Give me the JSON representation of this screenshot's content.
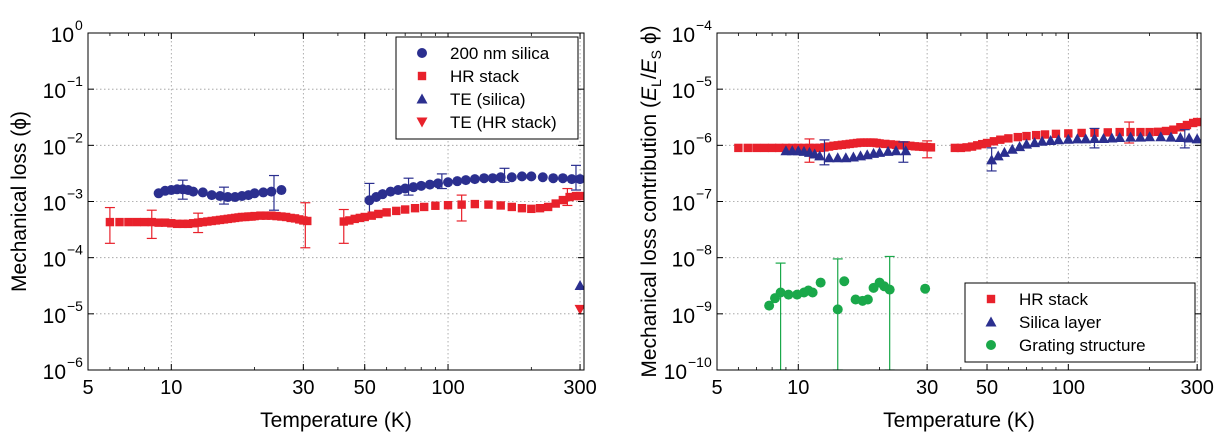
{
  "chart_data": [
    {
      "type": "scatter",
      "title": "",
      "xlabel": "Temperature (K)",
      "ylabel": "Mechanical loss (ϕ)",
      "x_scale": "log",
      "y_scale": "log",
      "xlim": [
        5,
        310
      ],
      "ylim": [
        1e-06,
        1
      ],
      "x_ticks": [
        5,
        10,
        30,
        50,
        100,
        300
      ],
      "x_tick_labels": [
        "5",
        "10",
        "30",
        "50",
        "100",
        "300"
      ],
      "y_ticks": [
        1e-06,
        1e-05,
        0.0001,
        0.001,
        0.01,
        0.1,
        1
      ],
      "y_tick_labels": [
        [
          "10",
          "−6"
        ],
        [
          "10",
          "−5"
        ],
        [
          "10",
          "−4"
        ],
        [
          "10",
          "−3"
        ],
        [
          "10",
          "−2"
        ],
        [
          "10",
          "−1"
        ],
        [
          "10",
          "0"
        ]
      ],
      "grid": true,
      "legend": "top-right",
      "series": [
        {
          "name": "200 nm silica",
          "marker": "circle",
          "color": "#2b2f8f",
          "x": [
            9.0,
            9.5,
            10.0,
            10.5,
            11.0,
            11.5,
            12.0,
            13.0,
            14.0,
            15.0,
            16.0,
            17.0,
            18.0,
            19.0,
            20.0,
            21.5,
            23.0,
            25.0,
            52,
            55,
            58,
            62,
            66,
            70,
            75,
            80,
            86,
            92,
            100,
            108,
            116,
            125,
            135,
            145,
            155,
            170,
            185,
            200,
            220,
            240,
            260,
            280,
            300
          ],
          "y": [
            0.0014,
            0.00155,
            0.0016,
            0.00165,
            0.00165,
            0.0016,
            0.0015,
            0.00145,
            0.0013,
            0.00125,
            0.0012,
            0.0012,
            0.00125,
            0.0013,
            0.0014,
            0.00145,
            0.0015,
            0.0016,
            0.00105,
            0.0012,
            0.00135,
            0.0015,
            0.0016,
            0.0017,
            0.0018,
            0.0019,
            0.002,
            0.0021,
            0.0022,
            0.0023,
            0.0024,
            0.0025,
            0.0026,
            0.0026,
            0.0027,
            0.0027,
            0.0028,
            0.0028,
            0.0027,
            0.0026,
            0.0026,
            0.0025,
            0.0025
          ],
          "error_bars": [
            {
              "x": 11.0,
              "low": 0.0011,
              "high": 0.0024
            },
            {
              "x": 15.5,
              "low": 0.0009,
              "high": 0.0018
            },
            {
              "x": 23.5,
              "low": 0.0007,
              "high": 0.0029
            },
            {
              "x": 52,
              "low": 0.0006,
              "high": 0.0021
            },
            {
              "x": 72,
              "low": 0.0013,
              "high": 0.0026
            },
            {
              "x": 95,
              "low": 0.0017,
              "high": 0.0031
            },
            {
              "x": 160,
              "low": 0.0022,
              "high": 0.0039
            },
            {
              "x": 290,
              "low": 0.0016,
              "high": 0.0044
            }
          ]
        },
        {
          "name": "HR stack",
          "marker": "square",
          "color": "#e8212b",
          "x": [
            6.0,
            6.5,
            7.0,
            7.5,
            8.0,
            8.5,
            9.0,
            9.5,
            10.0,
            10.5,
            11.0,
            11.5,
            12.0,
            12.5,
            13.0,
            13.5,
            14.0,
            14.5,
            15.0,
            15.5,
            16.0,
            16.5,
            17.0,
            17.5,
            18.0,
            18.5,
            19.0,
            19.5,
            20.0,
            21.0,
            22.0,
            23.0,
            24.0,
            25.0,
            26.0,
            27.0,
            28.0,
            29.0,
            30.0,
            31.0,
            42,
            44,
            46,
            48,
            50,
            53,
            56,
            60,
            65,
            70,
            76,
            82,
            90,
            100,
            112,
            125,
            140,
            155,
            170,
            185,
            200,
            215,
            230,
            245,
            260,
            275,
            290,
            300
          ],
          "y": [
            0.00043,
            0.00043,
            0.00043,
            0.00043,
            0.00043,
            0.00043,
            0.00042,
            0.00042,
            0.00041,
            0.0004,
            0.0004,
            0.0004,
            0.00041,
            0.00042,
            0.00043,
            0.00044,
            0.00045,
            0.00046,
            0.00047,
            0.00048,
            0.00049,
            0.0005,
            0.00051,
            0.00052,
            0.00053,
            0.00053,
            0.00054,
            0.00054,
            0.00055,
            0.00056,
            0.00056,
            0.00056,
            0.00055,
            0.00054,
            0.00053,
            0.00051,
            0.0005,
            0.00048,
            0.00046,
            0.00045,
            0.00044,
            0.00046,
            0.00049,
            0.00051,
            0.00053,
            0.00056,
            0.0006,
            0.00064,
            0.00068,
            0.00072,
            0.00076,
            0.0008,
            0.00084,
            0.00086,
            0.00088,
            0.0009,
            0.00088,
            0.00085,
            0.0008,
            0.00076,
            0.00074,
            0.00076,
            0.0008,
            0.00092,
            0.00106,
            0.0012,
            0.00125,
            0.00125
          ],
          "error_bars": [
            {
              "x": 6.0,
              "low": 0.00018,
              "high": 0.00078
            },
            {
              "x": 8.5,
              "low": 0.00022,
              "high": 0.0007
            },
            {
              "x": 12.5,
              "low": 0.00028,
              "high": 0.00062
            },
            {
              "x": 30.5,
              "low": 0.00015,
              "high": 0.00095
            },
            {
              "x": 42,
              "low": 0.00018,
              "high": 0.00072
            },
            {
              "x": 112,
              "low": 0.00045,
              "high": 0.0013
            },
            {
              "x": 270,
              "low": 0.00085,
              "high": 0.0017
            }
          ]
        },
        {
          "name": "TE (silica)",
          "marker": "triangle-up",
          "color": "#2b2f8f",
          "x": [
            300
          ],
          "y": [
            3.2e-05
          ]
        },
        {
          "name": "TE (HR stack)",
          "marker": "triangle-down",
          "color": "#e8212b",
          "x": [
            300
          ],
          "y": [
            1.2e-05
          ]
        }
      ]
    },
    {
      "type": "scatter",
      "title": "",
      "xlabel": "Temperature (K)",
      "ylabel_parts": [
        "Mechanical loss contribution (",
        "E",
        "L",
        "/",
        "E",
        "S",
        " ϕ)"
      ],
      "x_scale": "log",
      "y_scale": "log",
      "xlim": [
        5,
        310
      ],
      "ylim": [
        1e-10,
        0.0001
      ],
      "x_ticks": [
        5,
        10,
        30,
        50,
        100,
        300
      ],
      "x_tick_labels": [
        "5",
        "10",
        "30",
        "50",
        "100",
        "300"
      ],
      "y_ticks": [
        1e-10,
        1e-09,
        1e-08,
        1e-07,
        1e-06,
        1e-05,
        0.0001
      ],
      "y_tick_labels": [
        [
          "10",
          "−10"
        ],
        [
          "10",
          "−9"
        ],
        [
          "10",
          "−8"
        ],
        [
          "10",
          "−7"
        ],
        [
          "10",
          "−6"
        ],
        [
          "10",
          "−5"
        ],
        [
          "10",
          "−4"
        ]
      ],
      "grid": true,
      "legend": "bottom-right",
      "series": [
        {
          "name": "HR stack",
          "marker": "square",
          "color": "#e8212b",
          "x": [
            6.0,
            6.5,
            7.0,
            7.5,
            8.0,
            8.5,
            9.0,
            9.5,
            10.0,
            10.5,
            11.0,
            11.5,
            12.0,
            12.5,
            13.0,
            13.5,
            14.0,
            14.5,
            15.0,
            15.5,
            16.0,
            16.5,
            17.0,
            17.5,
            18.0,
            18.5,
            19.0,
            19.5,
            20.0,
            21.0,
            22.0,
            23.0,
            24.0,
            25.0,
            26.0,
            27.0,
            28.0,
            29.0,
            30.0,
            31.0,
            38,
            40,
            42,
            44,
            46,
            48,
            50,
            53,
            56,
            60,
            65,
            70,
            76,
            82,
            90,
            100,
            112,
            125,
            140,
            155,
            170,
            185,
            200,
            215,
            230,
            245,
            260,
            275,
            290,
            300
          ],
          "y": [
            9e-07,
            9e-07,
            9e-07,
            9e-07,
            9e-07,
            9e-07,
            9e-07,
            9e-07,
            9e-07,
            9e-07,
            9e-07,
            9e-07,
            9e-07,
            9.2e-07,
            9.5e-07,
            9.8e-07,
            1e-06,
            1.02e-06,
            1.04e-06,
            1.06e-06,
            1.08e-06,
            1.1e-06,
            1.12e-06,
            1.12e-06,
            1.12e-06,
            1.12e-06,
            1.12e-06,
            1.1e-06,
            1.08e-06,
            1.06e-06,
            1.04e-06,
            1.02e-06,
            1e-06,
            1e-06,
            9.8e-07,
            9.6e-07,
            9.5e-07,
            9.4e-07,
            9.3e-07,
            9.2e-07,
            9e-07,
            9e-07,
            9.2e-07,
            9.5e-07,
            1e-06,
            1.05e-06,
            1.1e-06,
            1.18e-06,
            1.26e-06,
            1.33e-06,
            1.4e-06,
            1.46e-06,
            1.52e-06,
            1.56e-06,
            1.6e-06,
            1.63e-06,
            1.66e-06,
            1.68e-06,
            1.7e-06,
            1.72e-06,
            1.72e-06,
            1.72e-06,
            1.72e-06,
            1.74e-06,
            1.8e-06,
            1.9e-06,
            2.1e-06,
            2.3e-06,
            2.5e-06,
            2.6e-06
          ],
          "error_bars": [
            {
              "x": 11.0,
              "low": 5e-07,
              "high": 1.3e-06
            },
            {
              "x": 30.0,
              "low": 6e-07,
              "high": 1.2e-06
            },
            {
              "x": 168,
              "low": 1.1e-06,
              "high": 2.6e-06
            }
          ]
        },
        {
          "name": "Silica layer",
          "marker": "triangle-up",
          "color": "#2b2f8f",
          "x": [
            9.0,
            9.5,
            10.0,
            10.5,
            11.0,
            11.5,
            12.0,
            13.0,
            14.0,
            15.0,
            16.0,
            17.0,
            18.0,
            19.0,
            20.0,
            21.5,
            23.0,
            25.0,
            52,
            55,
            58,
            62,
            66,
            70,
            75,
            80,
            86,
            92,
            100,
            108,
            116,
            125,
            135,
            145,
            155,
            170,
            185,
            200,
            220,
            240,
            260,
            280,
            300
          ],
          "y": [
            8e-07,
            8e-07,
            8e-07,
            7.8e-07,
            7.5e-07,
            7e-07,
            6.5e-07,
            6e-07,
            6e-07,
            6e-07,
            6.2e-07,
            6.5e-07,
            6.8e-07,
            7.2e-07,
            7.5e-07,
            7.8e-07,
            8e-07,
            8e-07,
            5.5e-07,
            6.5e-07,
            7.5e-07,
            8.5e-07,
            9.5e-07,
            1.05e-06,
            1.12e-06,
            1.18e-06,
            1.22e-06,
            1.26e-06,
            1.28e-06,
            1.3e-06,
            1.3e-06,
            1.32e-06,
            1.32e-06,
            1.35e-06,
            1.38e-06,
            1.4e-06,
            1.4e-06,
            1.42e-06,
            1.42e-06,
            1.4e-06,
            1.38e-06,
            1.35e-06,
            1.3e-06
          ],
          "error_bars": [
            {
              "x": 12.5,
              "low": 4.5e-07,
              "high": 1.25e-06
            },
            {
              "x": 24.5,
              "low": 5e-07,
              "high": 1.15e-06
            },
            {
              "x": 52,
              "low": 3.5e-07,
              "high": 9e-07
            },
            {
              "x": 125,
              "low": 9e-07,
              "high": 2e-06
            },
            {
              "x": 270,
              "low": 9e-07,
              "high": 1.9e-06
            }
          ]
        },
        {
          "name": "Grating structure",
          "marker": "circle",
          "color": "#1aa84a",
          "x": [
            7.8,
            8.2,
            8.6,
            9.2,
            9.9,
            10.5,
            10.9,
            11.3,
            12.1,
            14.0,
            14.8,
            16.3,
            17.3,
            18.1,
            19.0,
            20.0,
            20.8,
            21.8,
            29.5
          ],
          "y": [
            1.4e-09,
            1.9e-09,
            2.4e-09,
            2.2e-09,
            2.2e-09,
            2.4e-09,
            2.6e-09,
            2.4e-09,
            3.6e-09,
            1.2e-09,
            3.8e-09,
            1.8e-09,
            1.7e-09,
            1.8e-09,
            2.9e-09,
            3.6e-09,
            3.1e-09,
            2.7e-09,
            2.8e-09
          ],
          "error_bars": [
            {
              "x": 8.6,
              "low": 1e-10,
              "high": 8e-09
            },
            {
              "x": 14.0,
              "low": 1e-10,
              "high": 9.5e-09
            },
            {
              "x": 21.8,
              "low": 1e-10,
              "high": 1.05e-08
            }
          ]
        }
      ]
    }
  ]
}
